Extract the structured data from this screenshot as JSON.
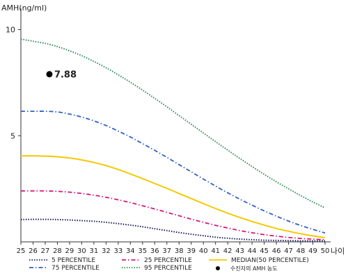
{
  "chart_data": {
    "type": "line",
    "ylabel": "AMH(ng/ml)",
    "xlabel": "나이",
    "x": [
      25,
      26,
      27,
      28,
      29,
      30,
      31,
      32,
      33,
      34,
      35,
      36,
      37,
      38,
      39,
      40,
      41,
      42,
      43,
      44,
      45,
      46,
      47,
      48,
      49,
      50
    ],
    "x_tick_labels": [
      "25",
      "26",
      "27",
      "28",
      "29",
      "30",
      "31",
      "32",
      "33",
      "34",
      "35",
      "36",
      "37",
      "38",
      "39",
      "40",
      "41",
      "42",
      "43",
      "44",
      "45",
      "46",
      "47",
      "48",
      "49",
      "50"
    ],
    "y_ticks": [
      5,
      10
    ],
    "ylim": [
      0,
      11
    ],
    "xlim": [
      25,
      50
    ],
    "grid": false,
    "legend_position": "bottom",
    "series": [
      {
        "name": "5 PERCENTILE",
        "color": "#1a1a5e",
        "dash": "dotted",
        "values": [
          1.05,
          1.06,
          1.06,
          1.05,
          1.03,
          1.0,
          0.97,
          0.92,
          0.86,
          0.79,
          0.71,
          0.62,
          0.53,
          0.44,
          0.36,
          0.29,
          0.22,
          0.17,
          0.13,
          0.1,
          0.08,
          0.07,
          0.06,
          0.05,
          0.05,
          0.05
        ]
      },
      {
        "name": "25 PERCENTILE",
        "color": "#d6177a",
        "dash": "dashdot",
        "values": [
          2.4,
          2.4,
          2.4,
          2.38,
          2.34,
          2.28,
          2.2,
          2.1,
          1.98,
          1.85,
          1.7,
          1.55,
          1.39,
          1.23,
          1.07,
          0.92,
          0.78,
          0.65,
          0.53,
          0.43,
          0.34,
          0.27,
          0.21,
          0.16,
          0.13,
          0.1
        ]
      },
      {
        "name": "MEDIAN(50 PERCENTILE)",
        "color": "#f5c800",
        "dash": "solid",
        "values": [
          4.05,
          4.05,
          4.04,
          4.01,
          3.95,
          3.86,
          3.74,
          3.59,
          3.41,
          3.2,
          2.98,
          2.75,
          2.52,
          2.28,
          2.04,
          1.8,
          1.57,
          1.35,
          1.15,
          0.96,
          0.79,
          0.63,
          0.5,
          0.38,
          0.28,
          0.2
        ]
      },
      {
        "name": "75 PERCENTILE",
        "color": "#2f5fc6",
        "dash": "dashdot",
        "values": [
          6.15,
          6.15,
          6.15,
          6.12,
          6.02,
          5.88,
          5.7,
          5.48,
          5.22,
          4.94,
          4.63,
          4.31,
          3.98,
          3.64,
          3.3,
          2.96,
          2.63,
          2.31,
          2.01,
          1.73,
          1.46,
          1.21,
          0.98,
          0.77,
          0.59,
          0.42
        ]
      },
      {
        "name": "95 PERCENTILE",
        "color": "#2e8b57",
        "dash": "dotted",
        "values": [
          9.55,
          9.45,
          9.35,
          9.2,
          9.0,
          8.77,
          8.5,
          8.2,
          7.87,
          7.52,
          7.15,
          6.76,
          6.36,
          5.95,
          5.54,
          5.13,
          4.72,
          4.32,
          3.93,
          3.55,
          3.18,
          2.83,
          2.5,
          2.18,
          1.88,
          1.6
        ]
      }
    ],
    "patient_point": {
      "name": "수진자의 AMH 농도",
      "x": 27,
      "y": 7.88,
      "label": "7.88",
      "color": "#000000"
    }
  },
  "legend": {
    "items": [
      {
        "label": "5 PERCENTILE",
        "series": 0
      },
      {
        "label": "25 PERCENTILE",
        "series": 1
      },
      {
        "label": "MEDIAN(50 PERCENTILE)",
        "series": 2
      },
      {
        "label": "75 PERCENTILE",
        "series": 3
      },
      {
        "label": "95 PERCENTILE",
        "series": 4
      }
    ],
    "point_label": "수진자의 AMH 농도"
  }
}
